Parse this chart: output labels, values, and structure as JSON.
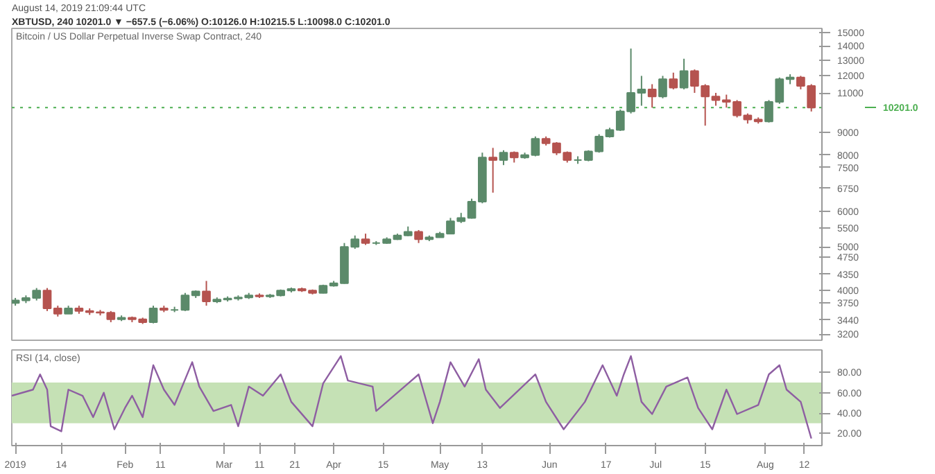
{
  "chart_data": [
    {
      "type": "candlestick",
      "title": "Bitcoin / US Dollar Perpetual Inverse Swap Contract, 240",
      "subtitle": "August 14, 2019 21:09:44 UTC",
      "annotations": [
        "XBTUSD, 240  10201.0 ▼ −657.5 (−6.06%) O:10126.0 H:10215.5 L:10098.0 C:10201.0"
      ],
      "x": [
        "2019-01-01",
        "2019-01-04",
        "2019-01-07",
        "2019-01-10",
        "2019-01-13",
        "2019-01-16",
        "2019-01-19",
        "2019-01-22",
        "2019-01-25",
        "2019-01-28",
        "2019-01-31",
        "2019-02-03",
        "2019-02-06",
        "2019-02-09",
        "2019-02-12",
        "2019-02-15",
        "2019-02-18",
        "2019-02-21",
        "2019-02-24",
        "2019-02-27",
        "2019-03-02",
        "2019-03-05",
        "2019-03-08",
        "2019-03-11",
        "2019-03-14",
        "2019-03-17",
        "2019-03-20",
        "2019-03-23",
        "2019-03-26",
        "2019-03-29",
        "2019-04-01",
        "2019-04-04",
        "2019-04-07",
        "2019-04-10",
        "2019-04-13",
        "2019-04-16",
        "2019-04-19",
        "2019-04-22",
        "2019-04-25",
        "2019-04-28",
        "2019-05-01",
        "2019-05-04",
        "2019-05-07",
        "2019-05-10",
        "2019-05-13",
        "2019-05-16",
        "2019-05-19",
        "2019-05-22",
        "2019-05-25",
        "2019-05-28",
        "2019-05-31",
        "2019-06-03",
        "2019-06-06",
        "2019-06-09",
        "2019-06-12",
        "2019-06-15",
        "2019-06-18",
        "2019-06-21",
        "2019-06-24",
        "2019-06-27",
        "2019-06-30",
        "2019-07-03",
        "2019-07-06",
        "2019-07-09",
        "2019-07-12",
        "2019-07-15",
        "2019-07-18",
        "2019-07-21",
        "2019-07-24",
        "2019-07-27",
        "2019-07-30",
        "2019-08-02",
        "2019-08-05",
        "2019-08-08",
        "2019-08-11",
        "2019-08-14"
      ],
      "ohlc": [
        [
          3750,
          3850,
          3700,
          3800
        ],
        [
          3800,
          3900,
          3750,
          3850
        ],
        [
          3850,
          4050,
          3800,
          4000
        ],
        [
          4000,
          4050,
          3600,
          3650
        ],
        [
          3650,
          3700,
          3500,
          3550
        ],
        [
          3550,
          3700,
          3550,
          3650
        ],
        [
          3650,
          3700,
          3550,
          3600
        ],
        [
          3600,
          3650,
          3530,
          3580
        ],
        [
          3580,
          3620,
          3520,
          3570
        ],
        [
          3570,
          3600,
          3400,
          3450
        ],
        [
          3450,
          3520,
          3420,
          3480
        ],
        [
          3480,
          3500,
          3400,
          3450
        ],
        [
          3450,
          3480,
          3370,
          3400
        ],
        [
          3400,
          3700,
          3380,
          3650
        ],
        [
          3650,
          3700,
          3580,
          3620
        ],
        [
          3620,
          3680,
          3580,
          3620
        ],
        [
          3620,
          3950,
          3600,
          3900
        ],
        [
          3900,
          4000,
          3850,
          3980
        ],
        [
          3980,
          4200,
          3700,
          3780
        ],
        [
          3780,
          3860,
          3750,
          3820
        ],
        [
          3820,
          3880,
          3780,
          3840
        ],
        [
          3840,
          3900,
          3800,
          3860
        ],
        [
          3860,
          3950,
          3830,
          3900
        ],
        [
          3900,
          3940,
          3850,
          3880
        ],
        [
          3880,
          3930,
          3850,
          3900
        ],
        [
          3900,
          4020,
          3880,
          4000
        ],
        [
          4000,
          4060,
          3960,
          4030
        ],
        [
          4030,
          4060,
          3970,
          4000
        ],
        [
          4000,
          4020,
          3920,
          3950
        ],
        [
          3950,
          4120,
          3940,
          4100
        ],
        [
          4100,
          4200,
          4080,
          4150
        ],
        [
          4150,
          5100,
          4140,
          5000
        ],
        [
          5000,
          5300,
          4950,
          5200
        ],
        [
          5200,
          5350,
          5050,
          5100
        ],
        [
          5100,
          5150,
          5050,
          5100
        ],
        [
          5100,
          5250,
          5080,
          5200
        ],
        [
          5200,
          5350,
          5180,
          5300
        ],
        [
          5300,
          5550,
          5280,
          5400
        ],
        [
          5400,
          5450,
          5100,
          5200
        ],
        [
          5200,
          5300,
          5150,
          5250
        ],
        [
          5250,
          5400,
          5240,
          5350
        ],
        [
          5350,
          5800,
          5340,
          5700
        ],
        [
          5700,
          5950,
          5650,
          5800
        ],
        [
          5800,
          6400,
          5780,
          6300
        ],
        [
          6300,
          8100,
          6250,
          7900
        ],
        [
          7900,
          8300,
          6600,
          7800
        ],
        [
          7800,
          8200,
          7600,
          8100
        ],
        [
          8100,
          8150,
          7700,
          7900
        ],
        [
          7900,
          8100,
          7850,
          8000
        ],
        [
          8000,
          8800,
          7950,
          8700
        ],
        [
          8700,
          8800,
          8400,
          8500
        ],
        [
          8500,
          8550,
          8000,
          8100
        ],
        [
          8100,
          8150,
          7700,
          7800
        ],
        [
          7800,
          7950,
          7650,
          7800
        ],
        [
          7800,
          8200,
          7750,
          8150
        ],
        [
          8150,
          8900,
          8100,
          8800
        ],
        [
          8800,
          9200,
          8750,
          9100
        ],
        [
          9100,
          10100,
          9050,
          10000
        ],
        [
          10000,
          13800,
          9900,
          11000
        ],
        [
          11000,
          12000,
          10300,
          11200
        ],
        [
          11200,
          11500,
          10200,
          10800
        ],
        [
          10800,
          12000,
          10700,
          11800
        ],
        [
          11800,
          12200,
          11200,
          11300
        ],
        [
          11300,
          13100,
          11200,
          12300
        ],
        [
          12300,
          12400,
          11000,
          11400
        ],
        [
          11400,
          11500,
          9300,
          10800
        ],
        [
          10800,
          11000,
          10300,
          10600
        ],
        [
          10600,
          10900,
          10200,
          10500
        ],
        [
          10500,
          10600,
          9700,
          9800
        ],
        [
          9800,
          9900,
          9400,
          9600
        ],
        [
          9600,
          9700,
          9400,
          9500
        ],
        [
          9500,
          10600,
          9450,
          10500
        ],
        [
          10500,
          11900,
          10400,
          11800
        ],
        [
          11800,
          12100,
          11500,
          11900
        ],
        [
          11900,
          12000,
          11200,
          11400
        ],
        [
          11400,
          11500,
          10000,
          10201
        ]
      ],
      "xlim": [
        "2018-12-31",
        "2019-08-17"
      ],
      "log": true,
      "ylim": [
        3100,
        15300
      ],
      "yticks": [
        3200,
        3440,
        3750,
        4000,
        4350,
        4750,
        5000,
        5500,
        6000,
        6750,
        7500,
        8000,
        9000,
        11000,
        12000,
        13000,
        14000,
        15000
      ],
      "ref_lines": [
        {
          "axis": "y",
          "value": 10201,
          "label": "10201.0",
          "color": "#4caf50",
          "line_style": "dotted"
        }
      ],
      "tick_labels": "y"
    },
    {
      "type": "line",
      "title": "RSI (14, close)",
      "x": [
        "2018-12-31",
        "2019-01-06",
        "2019-01-08",
        "2019-01-10",
        "2019-01-11",
        "2019-01-14",
        "2019-01-16",
        "2019-01-20",
        "2019-01-23",
        "2019-01-26",
        "2019-01-29",
        "2019-02-01",
        "2019-02-03",
        "2019-02-06",
        "2019-02-09",
        "2019-02-12",
        "2019-02-15",
        "2019-02-20",
        "2019-02-22",
        "2019-02-26",
        "2019-03-03",
        "2019-03-05",
        "2019-03-08",
        "2019-03-12",
        "2019-03-17",
        "2019-03-20",
        "2019-03-26",
        "2019-03-29",
        "2019-04-03",
        "2019-04-05",
        "2019-04-12",
        "2019-04-13",
        "2019-04-21",
        "2019-04-25",
        "2019-04-29",
        "2019-05-01",
        "2019-05-04",
        "2019-05-08",
        "2019-05-12",
        "2019-05-14",
        "2019-05-18",
        "2019-05-28",
        "2019-05-31",
        "2019-06-05",
        "2019-06-11",
        "2019-06-16",
        "2019-06-20",
        "2019-06-22",
        "2019-06-24",
        "2019-06-27",
        "2019-06-30",
        "2019-07-04",
        "2019-07-10",
        "2019-07-13",
        "2019-07-17",
        "2019-07-21",
        "2019-07-24",
        "2019-07-30",
        "2019-08-02",
        "2019-08-05",
        "2019-08-07",
        "2019-08-11",
        "2019-08-14"
      ],
      "series": [
        {
          "color": "#8e5ea2",
          "values": [
            57,
            63,
            78,
            63,
            27,
            22,
            63,
            57,
            36,
            60,
            24,
            45,
            57,
            36,
            87,
            63,
            48,
            90,
            66,
            42,
            48,
            27,
            66,
            57,
            78,
            51,
            27,
            69,
            96,
            72,
            66,
            42,
            66,
            78,
            30,
            51,
            90,
            66,
            93,
            63,
            45,
            78,
            51,
            24,
            51,
            87,
            57,
            78,
            96,
            51,
            39,
            66,
            75,
            45,
            24,
            63,
            39,
            48,
            78,
            87,
            63,
            51,
            15
          ]
        }
      ],
      "xlim": [
        "2018-12-31",
        "2019-08-17"
      ],
      "ylim": [
        8,
        102
      ],
      "yticks": [
        {
          "value": 20,
          "label": "20.00"
        },
        {
          "value": 40,
          "label": "40.00"
        },
        {
          "value": 60,
          "label": "60.00"
        },
        {
          "value": 80,
          "label": "80.00"
        }
      ],
      "xticks": [
        {
          "value": "2019-01-01",
          "label": "2019"
        },
        {
          "value": "2019-01-14",
          "label": "14"
        },
        {
          "value": "2019-02-01",
          "label": "Feb"
        },
        {
          "value": "2019-02-11",
          "label": "11"
        },
        {
          "value": "2019-03-01",
          "label": "Mar"
        },
        {
          "value": "2019-03-11",
          "label": "11"
        },
        {
          "value": "2019-03-21",
          "label": "21"
        },
        {
          "value": "2019-04-01",
          "label": "Apr"
        },
        {
          "value": "2019-04-15",
          "label": "15"
        },
        {
          "value": "2019-05-01",
          "label": "May"
        },
        {
          "value": "2019-05-13",
          "label": "13"
        },
        {
          "value": "2019-06-01",
          "label": "Jun"
        },
        {
          "value": "2019-06-17",
          "label": "17"
        },
        {
          "value": "2019-07-01",
          "label": "Jul"
        },
        {
          "value": "2019-07-15",
          "label": "15"
        },
        {
          "value": "2019-08-01",
          "label": "Aug"
        },
        {
          "value": "2019-08-12",
          "label": "12"
        }
      ],
      "bands": [
        {
          "axis": "y",
          "from": 30,
          "to": 70,
          "color": "#c5e1b5"
        }
      ]
    }
  ]
}
